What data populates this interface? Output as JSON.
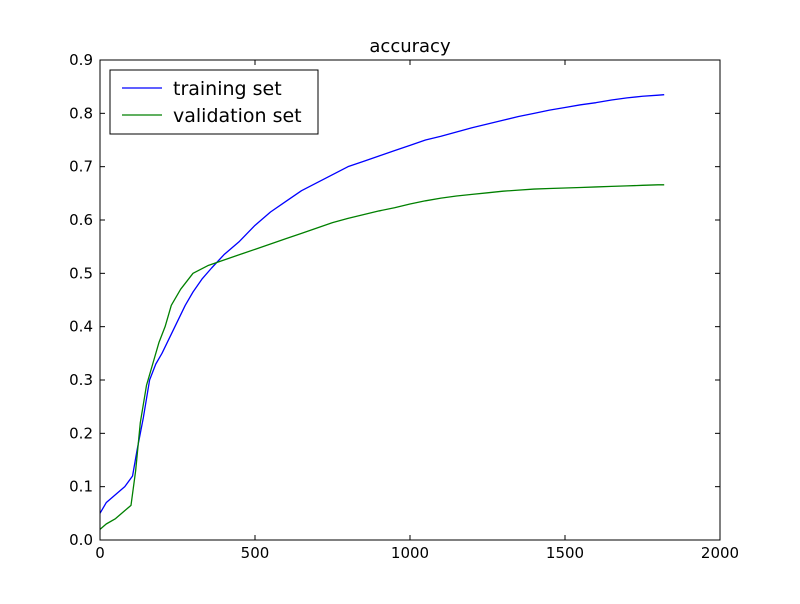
{
  "chart_data": {
    "type": "line",
    "title": "accuracy",
    "xlabel": "",
    "ylabel": "",
    "xlim": [
      0,
      2000
    ],
    "ylim": [
      0.0,
      0.9
    ],
    "xticks": [
      0,
      500,
      1000,
      1500,
      2000
    ],
    "yticks": [
      0.0,
      0.1,
      0.2,
      0.3,
      0.4,
      0.5,
      0.6,
      0.7,
      0.8,
      0.9
    ],
    "xtick_labels": [
      "0",
      "500",
      "1000",
      "1500",
      "2000"
    ],
    "ytick_labels": [
      "0.0",
      "0.1",
      "0.2",
      "0.3",
      "0.4",
      "0.5",
      "0.6",
      "0.7",
      "0.8",
      "0.9"
    ],
    "grid": false,
    "legend_position": "top-left",
    "series": [
      {
        "name": "training set",
        "color": "#0000ff",
        "x": [
          0,
          20,
          50,
          80,
          105,
          120,
          140,
          160,
          180,
          200,
          225,
          250,
          275,
          300,
          330,
          360,
          400,
          450,
          500,
          550,
          600,
          650,
          700,
          750,
          800,
          850,
          900,
          950,
          1000,
          1050,
          1100,
          1150,
          1200,
          1250,
          1300,
          1350,
          1400,
          1450,
          1500,
          1550,
          1600,
          1650,
          1700,
          1750,
          1800,
          1820
        ],
        "y": [
          0.05,
          0.07,
          0.085,
          0.1,
          0.12,
          0.17,
          0.23,
          0.3,
          0.33,
          0.35,
          0.38,
          0.41,
          0.44,
          0.465,
          0.49,
          0.51,
          0.535,
          0.56,
          0.59,
          0.615,
          0.635,
          0.655,
          0.67,
          0.685,
          0.7,
          0.71,
          0.72,
          0.73,
          0.74,
          0.75,
          0.757,
          0.765,
          0.773,
          0.78,
          0.787,
          0.794,
          0.8,
          0.806,
          0.811,
          0.816,
          0.82,
          0.825,
          0.829,
          0.832,
          0.834,
          0.835
        ]
      },
      {
        "name": "validation set",
        "color": "#008000",
        "x": [
          0,
          20,
          50,
          80,
          100,
          115,
          130,
          150,
          170,
          190,
          210,
          230,
          260,
          300,
          350,
          400,
          450,
          500,
          550,
          600,
          650,
          700,
          750,
          800,
          850,
          900,
          950,
          1000,
          1050,
          1100,
          1150,
          1200,
          1250,
          1300,
          1350,
          1400,
          1450,
          1500,
          1550,
          1600,
          1650,
          1700,
          1750,
          1800,
          1820
        ],
        "y": [
          0.02,
          0.03,
          0.04,
          0.055,
          0.065,
          0.13,
          0.22,
          0.29,
          0.33,
          0.37,
          0.4,
          0.44,
          0.47,
          0.5,
          0.515,
          0.525,
          0.535,
          0.545,
          0.555,
          0.565,
          0.575,
          0.585,
          0.595,
          0.603,
          0.61,
          0.617,
          0.623,
          0.63,
          0.636,
          0.641,
          0.645,
          0.648,
          0.651,
          0.654,
          0.656,
          0.658,
          0.659,
          0.66,
          0.661,
          0.662,
          0.663,
          0.664,
          0.665,
          0.666,
          0.666
        ]
      }
    ]
  }
}
